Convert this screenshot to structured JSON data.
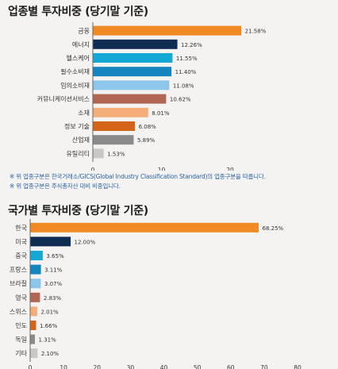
{
  "titles": {
    "sector": "업종별 투자비중 (당기말 기준)",
    "country": "국가별 투자비중 (당기말 기준)"
  },
  "notes": [
    "※ 위 업종구분은 한국거래소/GICS(Global Industry Classification Standard)의 업종구분을 따릅니다.",
    "※ 위 업종구분은 주식총자산 대비 비중입니다."
  ],
  "chart_data": [
    {
      "type": "bar",
      "orientation": "horizontal",
      "title": "업종별 투자비중 (당기말 기준)",
      "categories": [
        "금융",
        "에너지",
        "헬스케어",
        "필수소비재",
        "임의소비재",
        "커뮤니케이션서비스",
        "소재",
        "정보 기술",
        "산업재",
        "유틸리티"
      ],
      "values": [
        21.58,
        12.26,
        11.55,
        11.4,
        11.08,
        10.62,
        8.01,
        6.08,
        5.89,
        1.53
      ],
      "labels": [
        "21.58%",
        "12.26%",
        "11.55%",
        "11.40%",
        "11.08%",
        "10.62%",
        "8.01%",
        "6.08%",
        "5.89%",
        "1.53%"
      ],
      "colors": [
        "#f08a24",
        "#0f2d52",
        "#15a8d4",
        "#1384bd",
        "#8cc6e8",
        "#b06650",
        "#f5ae7a",
        "#d4641a",
        "#8a8a8a",
        "#c8c8c8"
      ],
      "xlim": [
        0,
        20
      ],
      "xticks": [
        0,
        10,
        20
      ],
      "grid": false
    },
    {
      "type": "bar",
      "orientation": "horizontal",
      "title": "국가별 투자비중 (당기말 기준)",
      "categories": [
        "한국",
        "미국",
        "중국",
        "프랑스",
        "브라질",
        "영국",
        "스위스",
        "인도",
        "독일",
        "기타"
      ],
      "values": [
        68.25,
        12.0,
        3.65,
        3.11,
        3.07,
        2.83,
        2.01,
        1.66,
        1.31,
        2.1
      ],
      "labels": [
        "68.25%",
        "12.00%",
        "3.65%",
        "3.11%",
        "3.07%",
        "2.83%",
        "2.01%",
        "1.66%",
        "1.31%",
        "2.10%"
      ],
      "colors": [
        "#f08a24",
        "#0f2d52",
        "#15a8d4",
        "#1384bd",
        "#8cc6e8",
        "#b06650",
        "#f5ae7a",
        "#d4641a",
        "#8a8a8a",
        "#c8c8c8"
      ],
      "xlim": [
        0,
        80
      ],
      "xticks": [
        0,
        10,
        20,
        30,
        40,
        50,
        60,
        70,
        80
      ],
      "grid": false
    }
  ]
}
